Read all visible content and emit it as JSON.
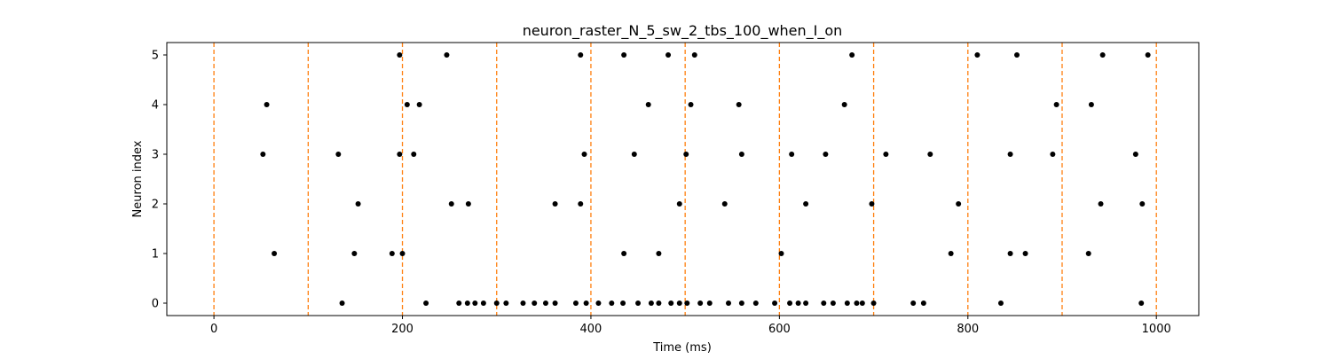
{
  "chart_data": {
    "type": "scatter",
    "title": "neuron_raster_N_5_sw_2_tbs_100_when_I_on",
    "xlabel": "Time (ms)",
    "ylabel": "Neuron index",
    "xlim": [
      -50,
      1045
    ],
    "ylim": [
      -0.25,
      5.25
    ],
    "xticks": [
      0,
      200,
      400,
      600,
      800,
      1000
    ],
    "yticks": [
      0,
      1,
      2,
      3,
      4,
      5
    ],
    "grid": false,
    "marker_color": "#000000",
    "vline_color": "#ff7f0e",
    "vlines": [
      0,
      100,
      200,
      300,
      400,
      500,
      600,
      700,
      800,
      900,
      1000
    ],
    "series": [
      {
        "neuron": 0,
        "times": [
          136,
          225,
          260,
          269,
          277,
          286,
          300,
          310,
          328,
          340,
          352,
          362,
          384,
          395,
          408,
          422,
          434,
          450,
          464,
          472,
          485,
          494,
          502,
          516,
          526,
          546,
          560,
          575,
          595,
          611,
          620,
          628,
          647,
          657,
          672,
          682,
          688,
          700,
          742,
          753,
          835,
          984
        ]
      },
      {
        "neuron": 1,
        "times": [
          64,
          149,
          189,
          200,
          435,
          472,
          602,
          782,
          845,
          861,
          928
        ]
      },
      {
        "neuron": 2,
        "times": [
          153,
          252,
          270,
          362,
          389,
          494,
          542,
          628,
          698,
          790,
          941,
          985
        ]
      },
      {
        "neuron": 3,
        "times": [
          52,
          132,
          197,
          212,
          393,
          446,
          501,
          560,
          613,
          649,
          713,
          760,
          845,
          890,
          978
        ]
      },
      {
        "neuron": 4,
        "times": [
          56,
          205,
          218,
          461,
          506,
          557,
          669,
          894,
          931
        ]
      },
      {
        "neuron": 5,
        "times": [
          197,
          247,
          389,
          435,
          482,
          510,
          677,
          810,
          852,
          943,
          991
        ]
      }
    ]
  }
}
